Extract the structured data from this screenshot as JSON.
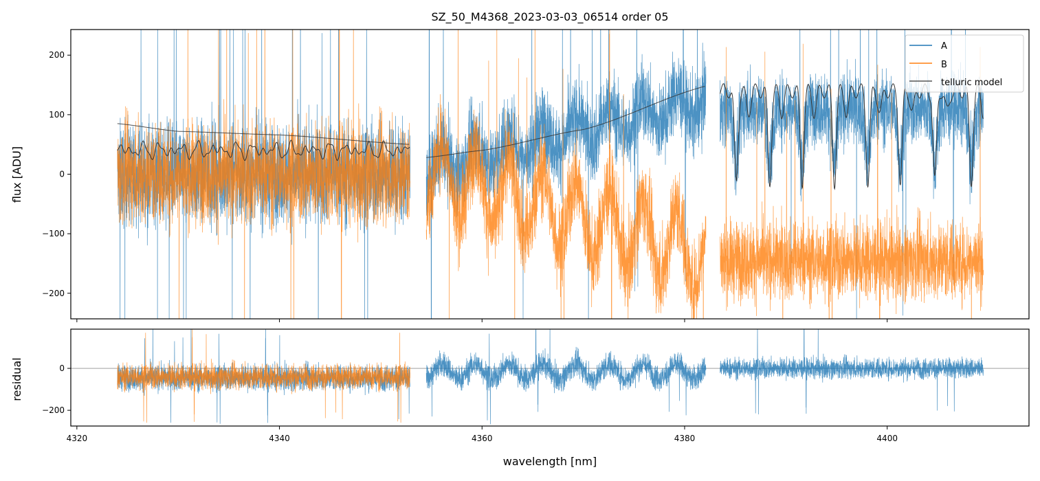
{
  "chart_data": {
    "type": "line",
    "title": "SZ_50_M4368_2023-03-03_06514  order 05",
    "xlabel": "wavelength [nm]",
    "xlim": [
      4319.4,
      4414.0
    ],
    "x_ticks": [
      4320,
      4340,
      4360,
      4380,
      4400
    ],
    "panels": [
      {
        "name": "flux",
        "ylabel": "flux [ADU]",
        "ylim": [
          -243,
          243
        ],
        "y_ticks": [
          -200,
          -100,
          0,
          100,
          200
        ],
        "y_tick_labels": [
          "−200",
          "−100",
          "0",
          "100",
          "200"
        ],
        "legend": {
          "placement": "top-right",
          "entries": [
            "A",
            "B",
            "telluric model"
          ]
        },
        "segments_nm": [
          [
            4324.0,
            4352.9
          ],
          [
            4354.5,
            4382.1
          ],
          [
            4383.5,
            4409.5
          ]
        ],
        "series": [
          {
            "name": "A",
            "color": "#1f77b4",
            "mean_by_segment": [
              [
                0,
                0
              ],
              [
                10,
                125
              ],
              [
                110,
                110
              ]
            ],
            "noise": [
              70,
              55,
              50
            ]
          },
          {
            "name": "B",
            "color": "#ff7f0e",
            "mean_by_segment": [
              [
                0,
                0
              ],
              [
                5,
                -135
              ],
              [
                -145,
                -145
              ]
            ],
            "noise": [
              70,
              60,
              55
            ]
          }
        ],
        "telluric_model": {
          "color": "#333333",
          "continuum": [
            {
              "x": [
                4324.0,
                4330,
                4340,
                4352.9
              ],
              "y": [
                85,
                72,
                66,
                50
              ]
            },
            {
              "x": [
                4354.5,
                4360,
                4370,
                4382.1
              ],
              "y": [
                28,
                40,
                75,
                148
              ]
            }
          ],
          "segment1_level": 48,
          "segment3_peak": 155,
          "line_centers_nm": [
            4385.1,
            4388.4,
            4391.6,
            4394.8,
            4398.1,
            4401.3,
            4404.7,
            4408.3
          ],
          "line_depth_min": -15
        }
      },
      {
        "name": "residual",
        "ylabel": "residual",
        "ylim": [
          -275,
          187
        ],
        "y_ticks": [
          -200,
          0
        ],
        "y_tick_labels": [
          "−200",
          "0"
        ],
        "series": [
          {
            "name": "A",
            "color": "#1f77b4",
            "mean_by_segment": [
              -45,
              -15,
              0
            ],
            "noise": [
              55,
              55,
              45
            ]
          },
          {
            "name": "B",
            "color": "#ff7f0e",
            "mean_by_segment": [
              -40
            ],
            "noise": [
              55
            ]
          }
        ]
      }
    ]
  }
}
